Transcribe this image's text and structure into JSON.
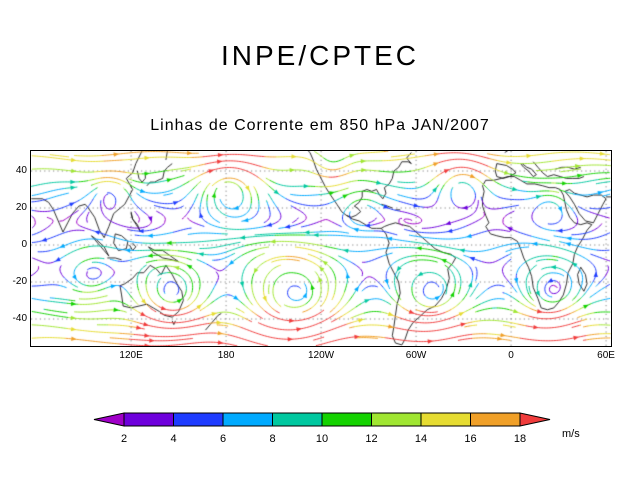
{
  "header": {
    "title": "INPE/CPTEC"
  },
  "chart": {
    "title": "Linhas de Corrente em 850 hPa JAN/2007",
    "unit_label": "m/s"
  },
  "chart_data": {
    "type": "streamline_map",
    "title": "Linhas de Corrente em 850 hPa JAN/2007",
    "field": "Linhas de Corrente (streamlines colored by wind speed)",
    "level": "850 hPa",
    "period": "JAN/2007",
    "x_ticks": [
      {
        "lon": 120,
        "label": "120E"
      },
      {
        "lon": 180,
        "label": "180"
      },
      {
        "lon": 240,
        "label": "120W"
      },
      {
        "lon": 300,
        "label": "60W"
      },
      {
        "lon": 360,
        "label": "0"
      },
      {
        "lon": 420,
        "label": "60E"
      }
    ],
    "y_ticks": [
      {
        "lat": 40,
        "label": "40"
      },
      {
        "lat": 20,
        "label": "20"
      },
      {
        "lat": 0,
        "label": "0"
      },
      {
        "lat": -20,
        "label": "-20"
      },
      {
        "lat": -40,
        "label": "-40"
      }
    ],
    "colorbar": {
      "unit": "m/s",
      "tick_values": [
        2,
        4,
        6,
        8,
        10,
        12,
        14,
        16,
        18
      ],
      "bin_colors": [
        "#a000c8",
        "#6e00dc",
        "#1e3cff",
        "#00aaff",
        "#00c8a0",
        "#14d200",
        "#a0e632",
        "#e6dc32",
        "#f0a028",
        "#f03c3c"
      ]
    },
    "grid": {
      "line_style": "dotted"
    },
    "flow": {
      "vortices": [
        {
          "x": 200,
          "y": 36,
          "s": -22,
          "r": 30
        },
        {
          "x": 80,
          "y": 40,
          "s": -14,
          "r": 20
        },
        {
          "x": 430,
          "y": 32,
          "s": -18,
          "r": 26
        },
        {
          "x": 520,
          "y": 55,
          "s": -10,
          "r": 18
        },
        {
          "x": 300,
          "y": 14,
          "s": 16,
          "r": 20
        },
        {
          "x": 140,
          "y": 146,
          "s": 24,
          "r": 36
        },
        {
          "x": 262,
          "y": 150,
          "s": 28,
          "r": 46
        },
        {
          "x": 398,
          "y": 148,
          "s": 22,
          "r": 36
        },
        {
          "x": 520,
          "y": 146,
          "s": 20,
          "r": 32
        },
        {
          "x": 60,
          "y": 126,
          "s": 14,
          "r": 24
        },
        {
          "x": 330,
          "y": 60,
          "s": -10,
          "r": 18
        }
      ]
    }
  }
}
